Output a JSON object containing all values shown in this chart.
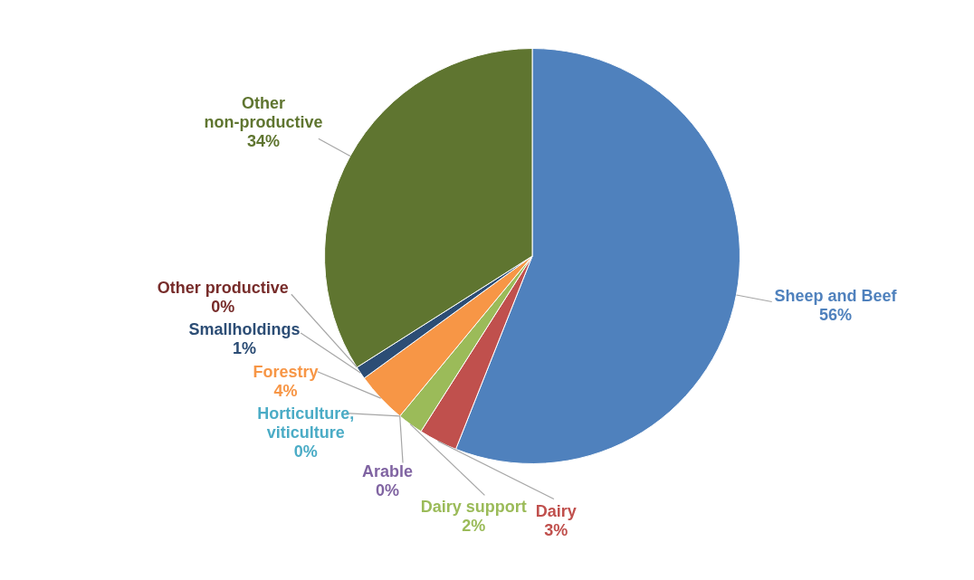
{
  "chart_data": {
    "type": "pie",
    "categories": [
      "Sheep and Beef",
      "Dairy",
      "Dairy support",
      "Arable",
      "Horticulture, viticulture",
      "Forestry",
      "Smallholdings",
      "Other productive",
      "Other non-productive"
    ],
    "values": [
      56,
      3,
      2,
      0,
      0,
      4,
      1,
      0,
      34
    ],
    "value_labels": [
      "56%",
      "3%",
      "2%",
      "0%",
      "0%",
      "4%",
      "1%",
      "0%",
      "34%"
    ],
    "colors": [
      "#4f81bd",
      "#c0504d",
      "#9bbb59",
      "#8064a2",
      "#4bacc6",
      "#f79646",
      "#2c4d75",
      "#772c2a",
      "#5f7530"
    ],
    "legend": false
  }
}
